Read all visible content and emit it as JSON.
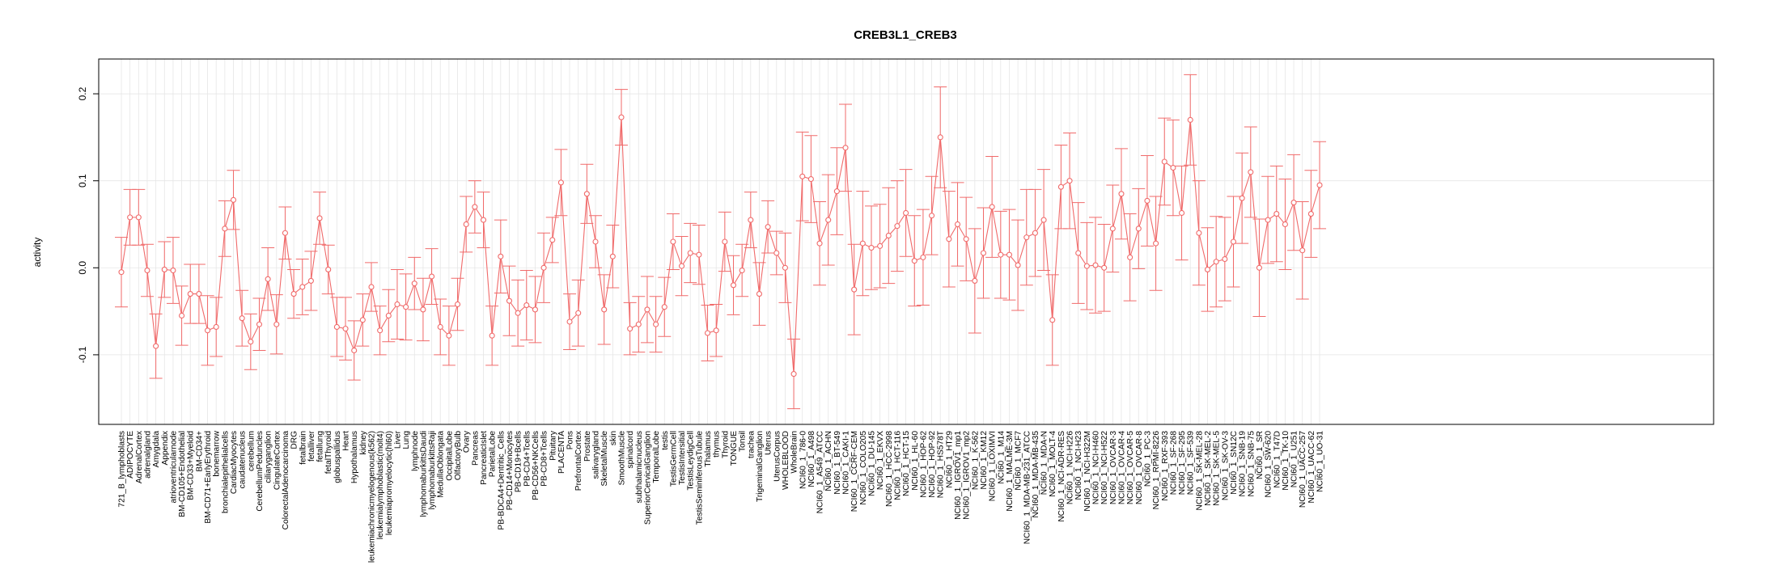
{
  "chart_data": {
    "type": "line",
    "title": "CREB3L1_CREB3",
    "xlabel": "",
    "ylabel": "activity",
    "ylim": [
      -0.18,
      0.24
    ],
    "yticks": [
      -0.1,
      0.0,
      0.1,
      0.2
    ],
    "ytick_labels": [
      "-0.1",
      "0.0",
      "0.1",
      "0.2"
    ],
    "grid": true,
    "legend": "none",
    "series_color": "#f06a6a",
    "grid_color": "#e6e6e6",
    "categories": [
      "721_B_lymphoblasts",
      "ADIPOCYTE",
      "AdrenalCortex",
      "adrenalgland",
      "Amygdala",
      "Appendix",
      "atrioventricularnode",
      "BM-CD105+Endothelial",
      "BM-CD33+Myeloid",
      "BM-CD34+",
      "BM-CD71+EarlyErythroid",
      "bonemarrow",
      "bronchialepithelialcells",
      "CardiacMyocytes",
      "caudatenucleus",
      "cerebellum",
      "CerebellumPeduncles",
      "ciliaryganglion",
      "CingulateCortex",
      "ColorectalAdenocarcinoma",
      "DRG",
      "fetalbrain",
      "fetalliver",
      "fetallung",
      "fetalThyroid",
      "globuspallidus",
      "Heart",
      "Hypothalamus",
      "kidney",
      "leukemiachronicmyelogenous(k562)",
      "leukemialymphoblastic(molt4)",
      "leukemiapromyelocytic(hl60)",
      "Liver",
      "Lung",
      "lymphnode",
      "lymphomaburkittsDaudi",
      "lymphomaburkittsRaji",
      "MedullaOblongata",
      "OccipitalLobe",
      "OlfactoryBulb",
      "Ovary",
      "Pancreas",
      "PancreaticIslet",
      "ParietalLobe",
      "PB-BDCA4+Dentritic_Cells",
      "PB-CD14+Monocytes",
      "PB-CD19+Bcells",
      "PB-CD4+Tcells",
      "PB-CD56+NKCells",
      "PB-CD8+Tcells",
      "Pituitary",
      "PLACENTA",
      "Pons",
      "PrefrontalCortex",
      "Prostate",
      "salivarygland",
      "SkeletalMuscle",
      "skin",
      "SmoothMuscle",
      "spinalcord",
      "subthalamicnucleus",
      "SuperiorCervicalGanglion",
      "TemporalLobe",
      "testis",
      "TestisGermCell",
      "TestisIntersitial",
      "TestisLeydigCell",
      "TestisSeminiferousTubule",
      "Thalamus",
      "thymus",
      "Thyroid",
      "TONGUE",
      "Tonsil",
      "trachea",
      "TrigeminalGanglion",
      "Uterus",
      "UterusCorpus",
      "WHOLEBLOOD",
      "WholeBrain",
      "NCI60_1_786-0",
      "NCI60_1_A498",
      "NCI60_1_A549_ATCC",
      "NCI60_1_ACHN",
      "NCI60_1_BT-549",
      "NCI60_1_CAKI-1",
      "NCI60_1_CCRF-CEM",
      "NCI60_1_COLO205",
      "NCI60_1_DU-145",
      "NCI60_1_EKVX",
      "NCI60_1_HCC-2998",
      "NCI60_1_HCT-116",
      "NCI60_1_HCT-15",
      "NCI60_1_HL-60",
      "NCI60_1_HOP-62",
      "NCI60_1_HOP-92",
      "NCI60_1_HS578T",
      "NCI60_1_HT29",
      "NCI60_1_IGROV1_mp1",
      "NCI60_1_IGROV1_mp2",
      "NCI60_1_K-562",
      "NCI60_1_KM12",
      "NCI60_1_LOXIMVI",
      "NCI60_1_M14",
      "NCI60_1_MALME-3M",
      "NCI60_1_MCF7",
      "NCI60_1_MDA-MB-231_ATCC",
      "NCI60_1_MDA-MB-435",
      "NCI60_1_MDA-N",
      "NCI60_1_MOLT-4",
      "NCI60_1_NCI-ADR-RES",
      "NCI60_1_NCI-H226",
      "NCI60_1_NCI-H23",
      "NCI60_1_NCI-H322M",
      "NCI60_1_NCI-H460",
      "NCI60_1_NCI-H522",
      "NCI60_1_OVCAR-3",
      "NCI60_1_OVCAR-4",
      "NCI60_1_OVCAR-5",
      "NCI60_1_OVCAR-8",
      "NCI60_1_PC-3",
      "NCI60_1_RPMI-8226",
      "NCI60_1_RXF-393",
      "NCI60_1_SF-268",
      "NCI60_1_SF-295",
      "NCI60_1_SF-539",
      "NCI60_1_SK-MEL-28",
      "NCI60_1_SK-MEL-2",
      "NCI60_1_SK-MEL-5",
      "NCI60_1_SK-OV-3",
      "NCI60_1_SN12C",
      "NCI60_1_SNB-19",
      "NCI60_1_SNB-75",
      "NCI60_1_SR",
      "NCI60_1_SW-620",
      "NCI60_1_T47D",
      "NCI60_1_TK-10",
      "NCI60_1_U251",
      "NCI60_1_UACC-257",
      "NCI60_1_UACC-62",
      "NCI60_1_UO-31"
    ],
    "values": [
      -0.005,
      0.058,
      0.058,
      -0.003,
      -0.09,
      -0.002,
      -0.003,
      -0.055,
      -0.03,
      -0.03,
      -0.072,
      -0.068,
      0.045,
      0.078,
      -0.058,
      -0.085,
      -0.065,
      -0.013,
      -0.065,
      0.04,
      -0.03,
      -0.022,
      -0.015,
      0.057,
      -0.002,
      -0.068,
      -0.07,
      -0.095,
      -0.06,
      -0.022,
      -0.072,
      -0.055,
      -0.042,
      -0.045,
      -0.018,
      -0.048,
      -0.01,
      -0.068,
      -0.078,
      -0.042,
      0.05,
      0.07,
      0.055,
      -0.078,
      0.013,
      -0.038,
      -0.052,
      -0.043,
      -0.048,
      0.0,
      0.032,
      0.098,
      -0.062,
      -0.052,
      0.085,
      0.03,
      -0.048,
      0.013,
      0.173,
      -0.07,
      -0.065,
      -0.048,
      -0.065,
      -0.045,
      0.03,
      0.002,
      0.017,
      0.015,
      -0.075,
      -0.072,
      0.03,
      -0.02,
      -0.003,
      0.055,
      -0.03,
      0.047,
      0.017,
      0.0,
      -0.122,
      0.105,
      0.102,
      0.028,
      0.055,
      0.088,
      0.138,
      -0.025,
      0.028,
      0.023,
      0.025,
      0.037,
      0.048,
      0.063,
      0.008,
      0.012,
      0.06,
      0.15,
      0.033,
      0.05,
      0.033,
      -0.015,
      0.017,
      0.07,
      0.015,
      0.015,
      0.003,
      0.035,
      0.04,
      0.055,
      -0.06,
      0.093,
      0.1,
      0.017,
      0.002,
      0.003,
      0.0,
      0.045,
      0.085,
      0.012,
      0.045,
      0.077,
      0.028,
      0.122,
      0.115,
      0.063,
      0.17,
      0.04,
      -0.002,
      0.007,
      0.01,
      0.03,
      0.08,
      0.11,
      0.0,
      0.055,
      0.062,
      0.05,
      0.075,
      0.02,
      0.062,
      0.095
    ],
    "errors": [
      0.04,
      0.032,
      0.032,
      0.03,
      0.037,
      0.032,
      0.038,
      0.034,
      0.034,
      0.034,
      0.04,
      0.034,
      0.032,
      0.034,
      0.032,
      0.032,
      0.03,
      0.036,
      0.034,
      0.03,
      0.028,
      0.032,
      0.034,
      0.03,
      0.028,
      0.034,
      0.036,
      0.034,
      0.03,
      0.028,
      0.028,
      0.03,
      0.04,
      0.038,
      0.03,
      0.036,
      0.032,
      0.032,
      0.034,
      0.03,
      0.032,
      0.03,
      0.032,
      0.034,
      0.042,
      0.04,
      0.038,
      0.04,
      0.038,
      0.04,
      0.026,
      0.038,
      0.032,
      0.038,
      0.034,
      0.03,
      0.04,
      0.036,
      0.032,
      0.03,
      0.032,
      0.038,
      0.032,
      0.034,
      0.032,
      0.034,
      0.034,
      0.034,
      0.032,
      0.03,
      0.034,
      0.034,
      0.03,
      0.032,
      0.036,
      0.03,
      0.025,
      0.04,
      0.04,
      0.051,
      0.05,
      0.048,
      0.052,
      0.05,
      0.05,
      0.052,
      0.06,
      0.048,
      0.048,
      0.055,
      0.052,
      0.05,
      0.052,
      0.055,
      0.045,
      0.058,
      0.055,
      0.048,
      0.048,
      0.06,
      0.052,
      0.058,
      0.05,
      0.052,
      0.052,
      0.055,
      0.05,
      0.058,
      0.052,
      0.048,
      0.055,
      0.058,
      0.05,
      0.055,
      0.05,
      0.05,
      0.052,
      0.05,
      0.046,
      0.052,
      0.054,
      0.05,
      0.055,
      0.054,
      0.052,
      0.06,
      0.048,
      0.052,
      0.048,
      0.052,
      0.052,
      0.052,
      0.056,
      0.05,
      0.055,
      0.052,
      0.055,
      0.056,
      0.05,
      0.05
    ]
  }
}
